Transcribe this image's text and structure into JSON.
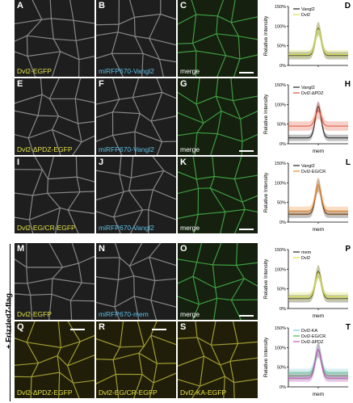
{
  "side_label": "+ Frizzled7-flag",
  "colors": {
    "yellow": "#e4e24a",
    "cyan": "#5fc0e6",
    "white": "#ffffff",
    "green_hint": "#39b54a"
  },
  "rows": [
    [
      {
        "id": "A",
        "caption": "Dvl2-EGFP",
        "color": "#e4e24a",
        "tint": "gray",
        "scale": false
      },
      {
        "id": "B",
        "caption": "miRFP670-Vangl2",
        "color": "#5fc0e6",
        "tint": "gray",
        "scale": false
      },
      {
        "id": "C",
        "caption": "merge",
        "color": "#ffffff",
        "tint": "green",
        "scale": true
      }
    ],
    [
      {
        "id": "E",
        "caption": "Dvl2-ΔPDZ-EGFP",
        "color": "#e4e24a",
        "tint": "gray",
        "scale": false
      },
      {
        "id": "F",
        "caption": "miRFP670-Vangl2",
        "color": "#5fc0e6",
        "tint": "gray",
        "scale": false
      },
      {
        "id": "G",
        "caption": "merge",
        "color": "#ffffff",
        "tint": "green",
        "scale": true
      }
    ],
    [
      {
        "id": "I",
        "caption": "Dvl2-EG/CR-EGFP",
        "color": "#e4e24a",
        "tint": "gray",
        "scale": false
      },
      {
        "id": "J",
        "caption": "miRFP670-Vangl2",
        "color": "#5fc0e6",
        "tint": "gray",
        "scale": false
      },
      {
        "id": "K",
        "caption": "merge",
        "color": "#ffffff",
        "tint": "green",
        "scale": true
      }
    ],
    [
      {
        "id": "M",
        "caption": "Dvl2-EGFP",
        "color": "#e4e24a",
        "tint": "gray",
        "scale": false
      },
      {
        "id": "N",
        "caption": "miRFP670-mem",
        "color": "#5fc0e6",
        "tint": "gray",
        "scale": false
      },
      {
        "id": "O",
        "caption": "merge",
        "color": "#ffffff",
        "tint": "green",
        "scale": true
      }
    ],
    [
      {
        "id": "Q",
        "caption": "Dvl2-ΔPDZ-EGFP",
        "color": "#e4e24a",
        "tint": "yellow",
        "scale": true
      },
      {
        "id": "R",
        "caption": "Dvl2-EG/CR-EGFP",
        "color": "#e4e24a",
        "tint": "yellow",
        "scale": true
      },
      {
        "id": "S",
        "caption": "Dvl2-KA-EGFP",
        "color": "#e4e24a",
        "tint": "yellow",
        "scale": false
      }
    ]
  ],
  "chart_data": [
    {
      "panel": "D",
      "type": "line",
      "xlabel": "",
      "ylabel": "Relative Intensity",
      "yticks": [
        "0%",
        "50%",
        "100%",
        "150%"
      ],
      "ylim": [
        0,
        150
      ],
      "series": [
        {
          "name": "Vangl2",
          "color": "#222222",
          "base": 25,
          "peak": 95,
          "band": 12
        },
        {
          "name": "Dvl2",
          "color": "#d8e04a",
          "base": 28,
          "peak": 92,
          "band": 14
        }
      ]
    },
    {
      "panel": "H",
      "type": "line",
      "xlabel": "mem",
      "ylabel": "Relative Intensity",
      "yticks": [
        "0%",
        "50%",
        "100%",
        "150%"
      ],
      "ylim": [
        0,
        150
      ],
      "series": [
        {
          "name": "Vangl2",
          "color": "#222222",
          "base": 15,
          "peak": 95,
          "band": 10
        },
        {
          "name": "Dvl2-ΔPDZ",
          "color": "#e0553b",
          "base": 45,
          "peak": 85,
          "band": 15
        }
      ]
    },
    {
      "panel": "L",
      "type": "line",
      "xlabel": "mem",
      "ylabel": "Relative Intensity",
      "yticks": [
        "0%",
        "50%",
        "100%",
        "150%"
      ],
      "ylim": [
        0,
        150
      ],
      "series": [
        {
          "name": "Vangl2",
          "color": "#222222",
          "base": 20,
          "peak": 95,
          "band": 12
        },
        {
          "name": "Dvl2-EG/CR",
          "color": "#e8892b",
          "base": 28,
          "peak": 95,
          "band": 14
        }
      ]
    },
    {
      "panel": "P",
      "type": "line",
      "xlabel": "mem",
      "ylabel": "Relative Intensity",
      "yticks": [
        "0%",
        "50%",
        "100%",
        "150%"
      ],
      "ylim": [
        0,
        150
      ],
      "series": [
        {
          "name": "mem",
          "color": "#222222",
          "base": 25,
          "peak": 95,
          "band": 12
        },
        {
          "name": "Dvl2",
          "color": "#d8e04a",
          "base": 30,
          "peak": 90,
          "band": 14
        }
      ]
    },
    {
      "panel": "T",
      "type": "line",
      "xlabel": "mem",
      "ylabel": "Relative Intensity",
      "yticks": [
        "0%",
        "50%",
        "100%",
        "150%"
      ],
      "ylim": [
        0,
        150
      ],
      "series": [
        {
          "name": "Dvl2-KA",
          "color": "#7fc6e0",
          "base": 35,
          "peak": 95,
          "band": 14
        },
        {
          "name": "Dvl2-EG/CR",
          "color": "#4fb04a",
          "base": 28,
          "peak": 95,
          "band": 14
        },
        {
          "name": "Dvl2-ΔPDZ",
          "color": "#c94fc4",
          "base": 22,
          "peak": 95,
          "band": 12
        }
      ]
    }
  ]
}
